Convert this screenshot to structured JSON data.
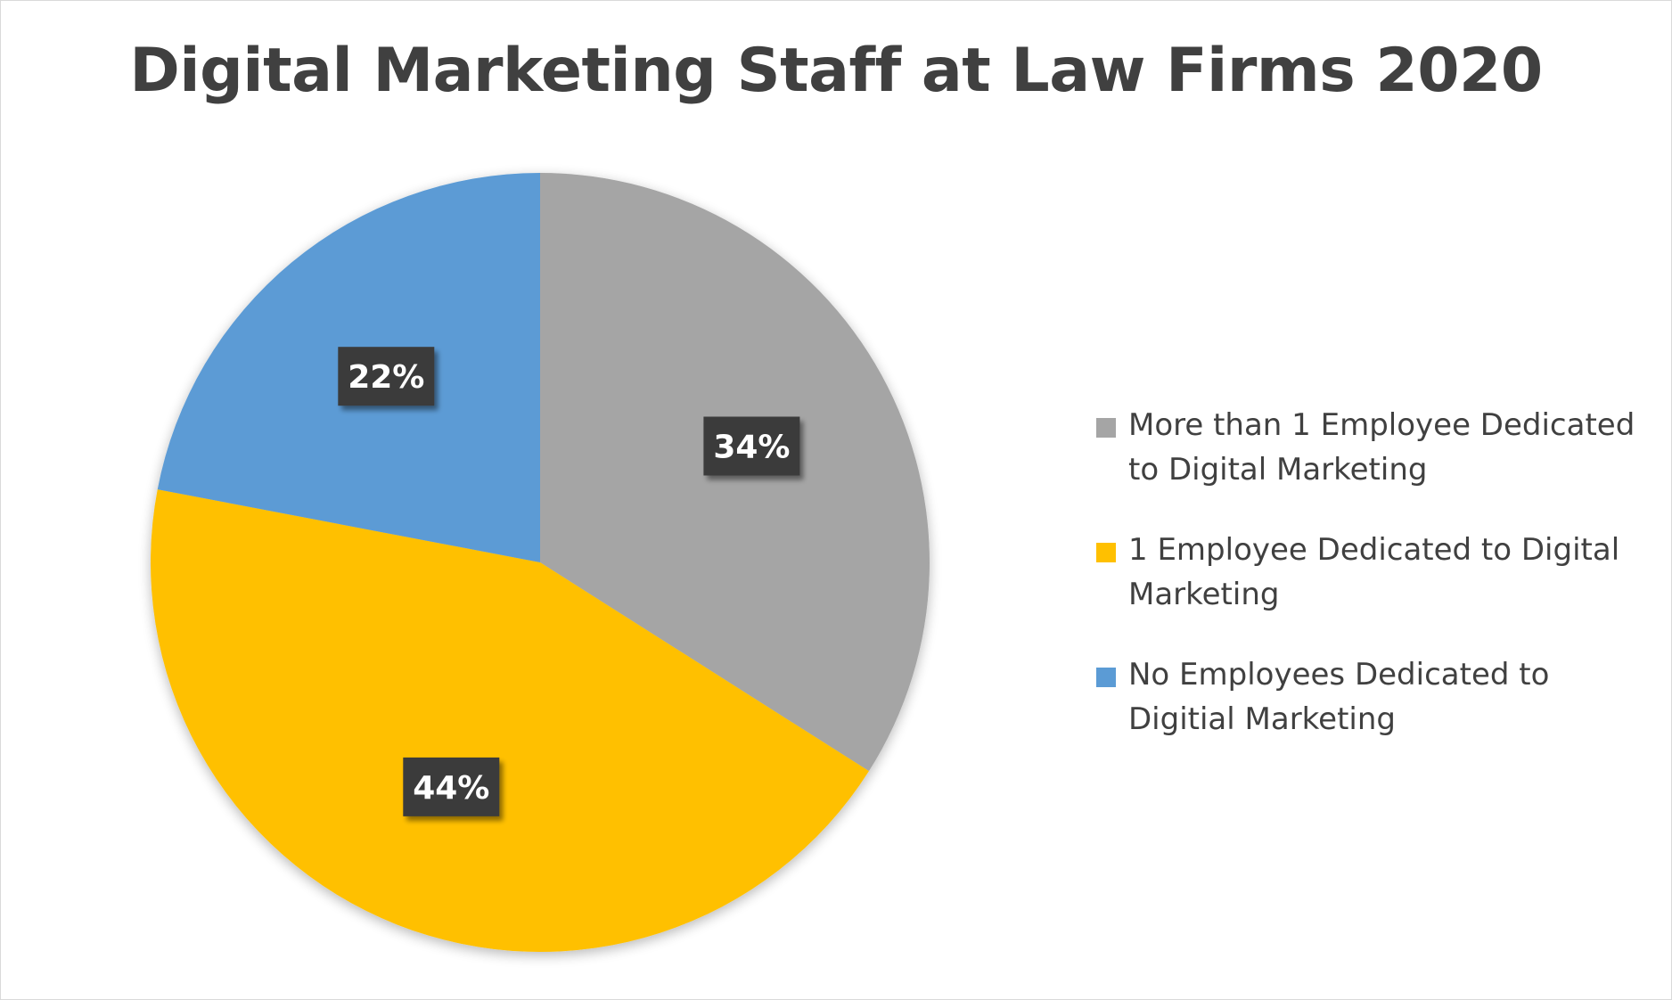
{
  "chart_data": {
    "type": "pie",
    "title": "Digital Marketing Staff at Law Firms 2020",
    "start_angle_deg": 0,
    "direction": "clockwise",
    "slices": [
      {
        "name": "More than 1 Employee Dedicated to Digital Marketing",
        "value": 34,
        "label": "34%",
        "color": "#a5a5a5"
      },
      {
        "name": "1 Employee Dedicated to Digital Marketing",
        "value": 44,
        "label": "44%",
        "color": "#ffc000"
      },
      {
        "name": "No Employees Dedicated to Digitial Marketing",
        "value": 22,
        "label": "22%",
        "color": "#5b9bd5"
      }
    ],
    "legend_position": "right",
    "data_label_style": "dark-box"
  }
}
